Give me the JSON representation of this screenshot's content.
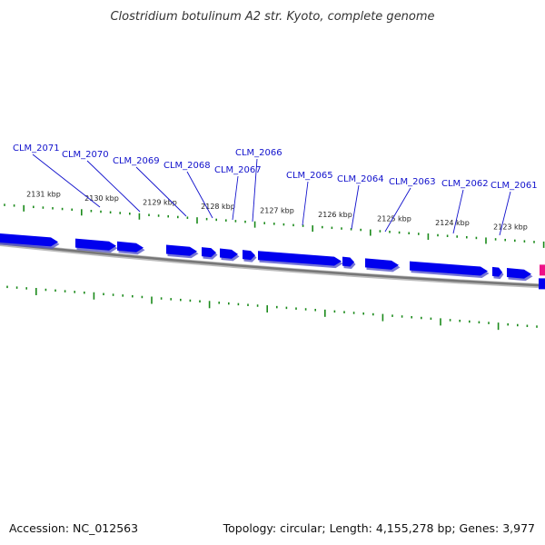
{
  "title": "Clostridium botulinum A2 str. Kyoto, complete genome",
  "accession_text": "Accession: NC_012563",
  "summary_text": "Topology: circular; Length: 4,155,278 bp; Genes: 3,977",
  "colors": {
    "gene_fill": "#0000ee",
    "gene_shadow": "#5555cc",
    "backbone": "#888888",
    "tick": "#1a8a1a",
    "label": "#1111cc",
    "highlight_gene": "#ee1188"
  },
  "ruler": {
    "unit": "kbp",
    "labels": [
      "2131 kbp",
      "2130 kbp",
      "2129 kbp",
      "2128 kbp",
      "2127 kbp",
      "2126 kbp",
      "2125 kbp",
      "2124 kbp",
      "2123 kbp"
    ]
  },
  "gene_labels": [
    "CLM_2071",
    "CLM_2070",
    "CLM_2069",
    "CLM_2068",
    "CLM_2067",
    "CLM_2066",
    "CLM_2065",
    "CLM_2064",
    "CLM_2063",
    "CLM_2062",
    "CLM_2061"
  ]
}
